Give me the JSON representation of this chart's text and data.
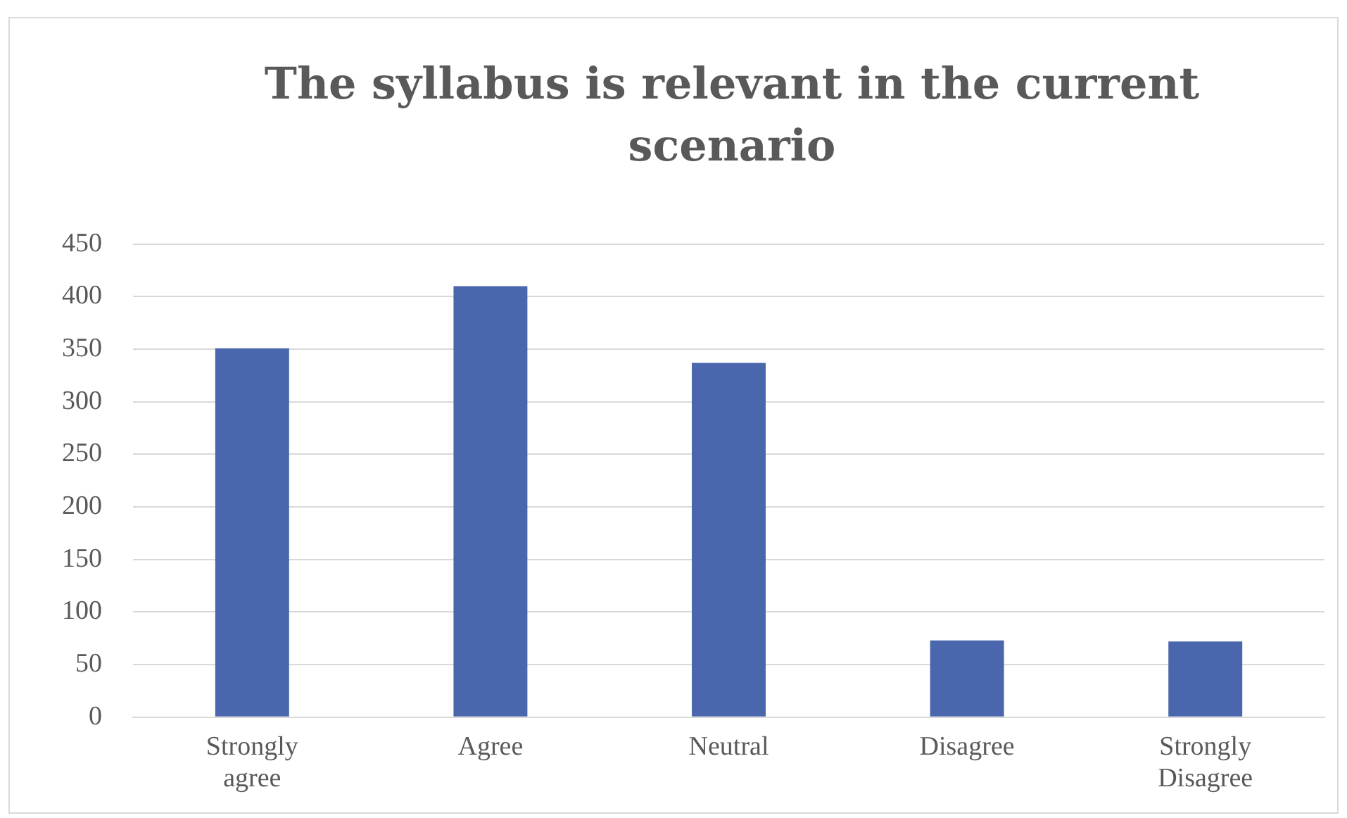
{
  "chart_data": {
    "type": "bar",
    "title": "The syllabus is relevant in the current scenario",
    "categories": [
      "Strongly agree",
      "Agree",
      "Neutral",
      "Disagree",
      "Strongly Disagree"
    ],
    "values": [
      351,
      410,
      337,
      73,
      72
    ],
    "color": "#4a67ad",
    "ylim": [
      0,
      450
    ],
    "yticks": [
      0,
      50,
      100,
      150,
      200,
      250,
      300,
      350,
      400,
      450
    ],
    "grid": "y"
  }
}
